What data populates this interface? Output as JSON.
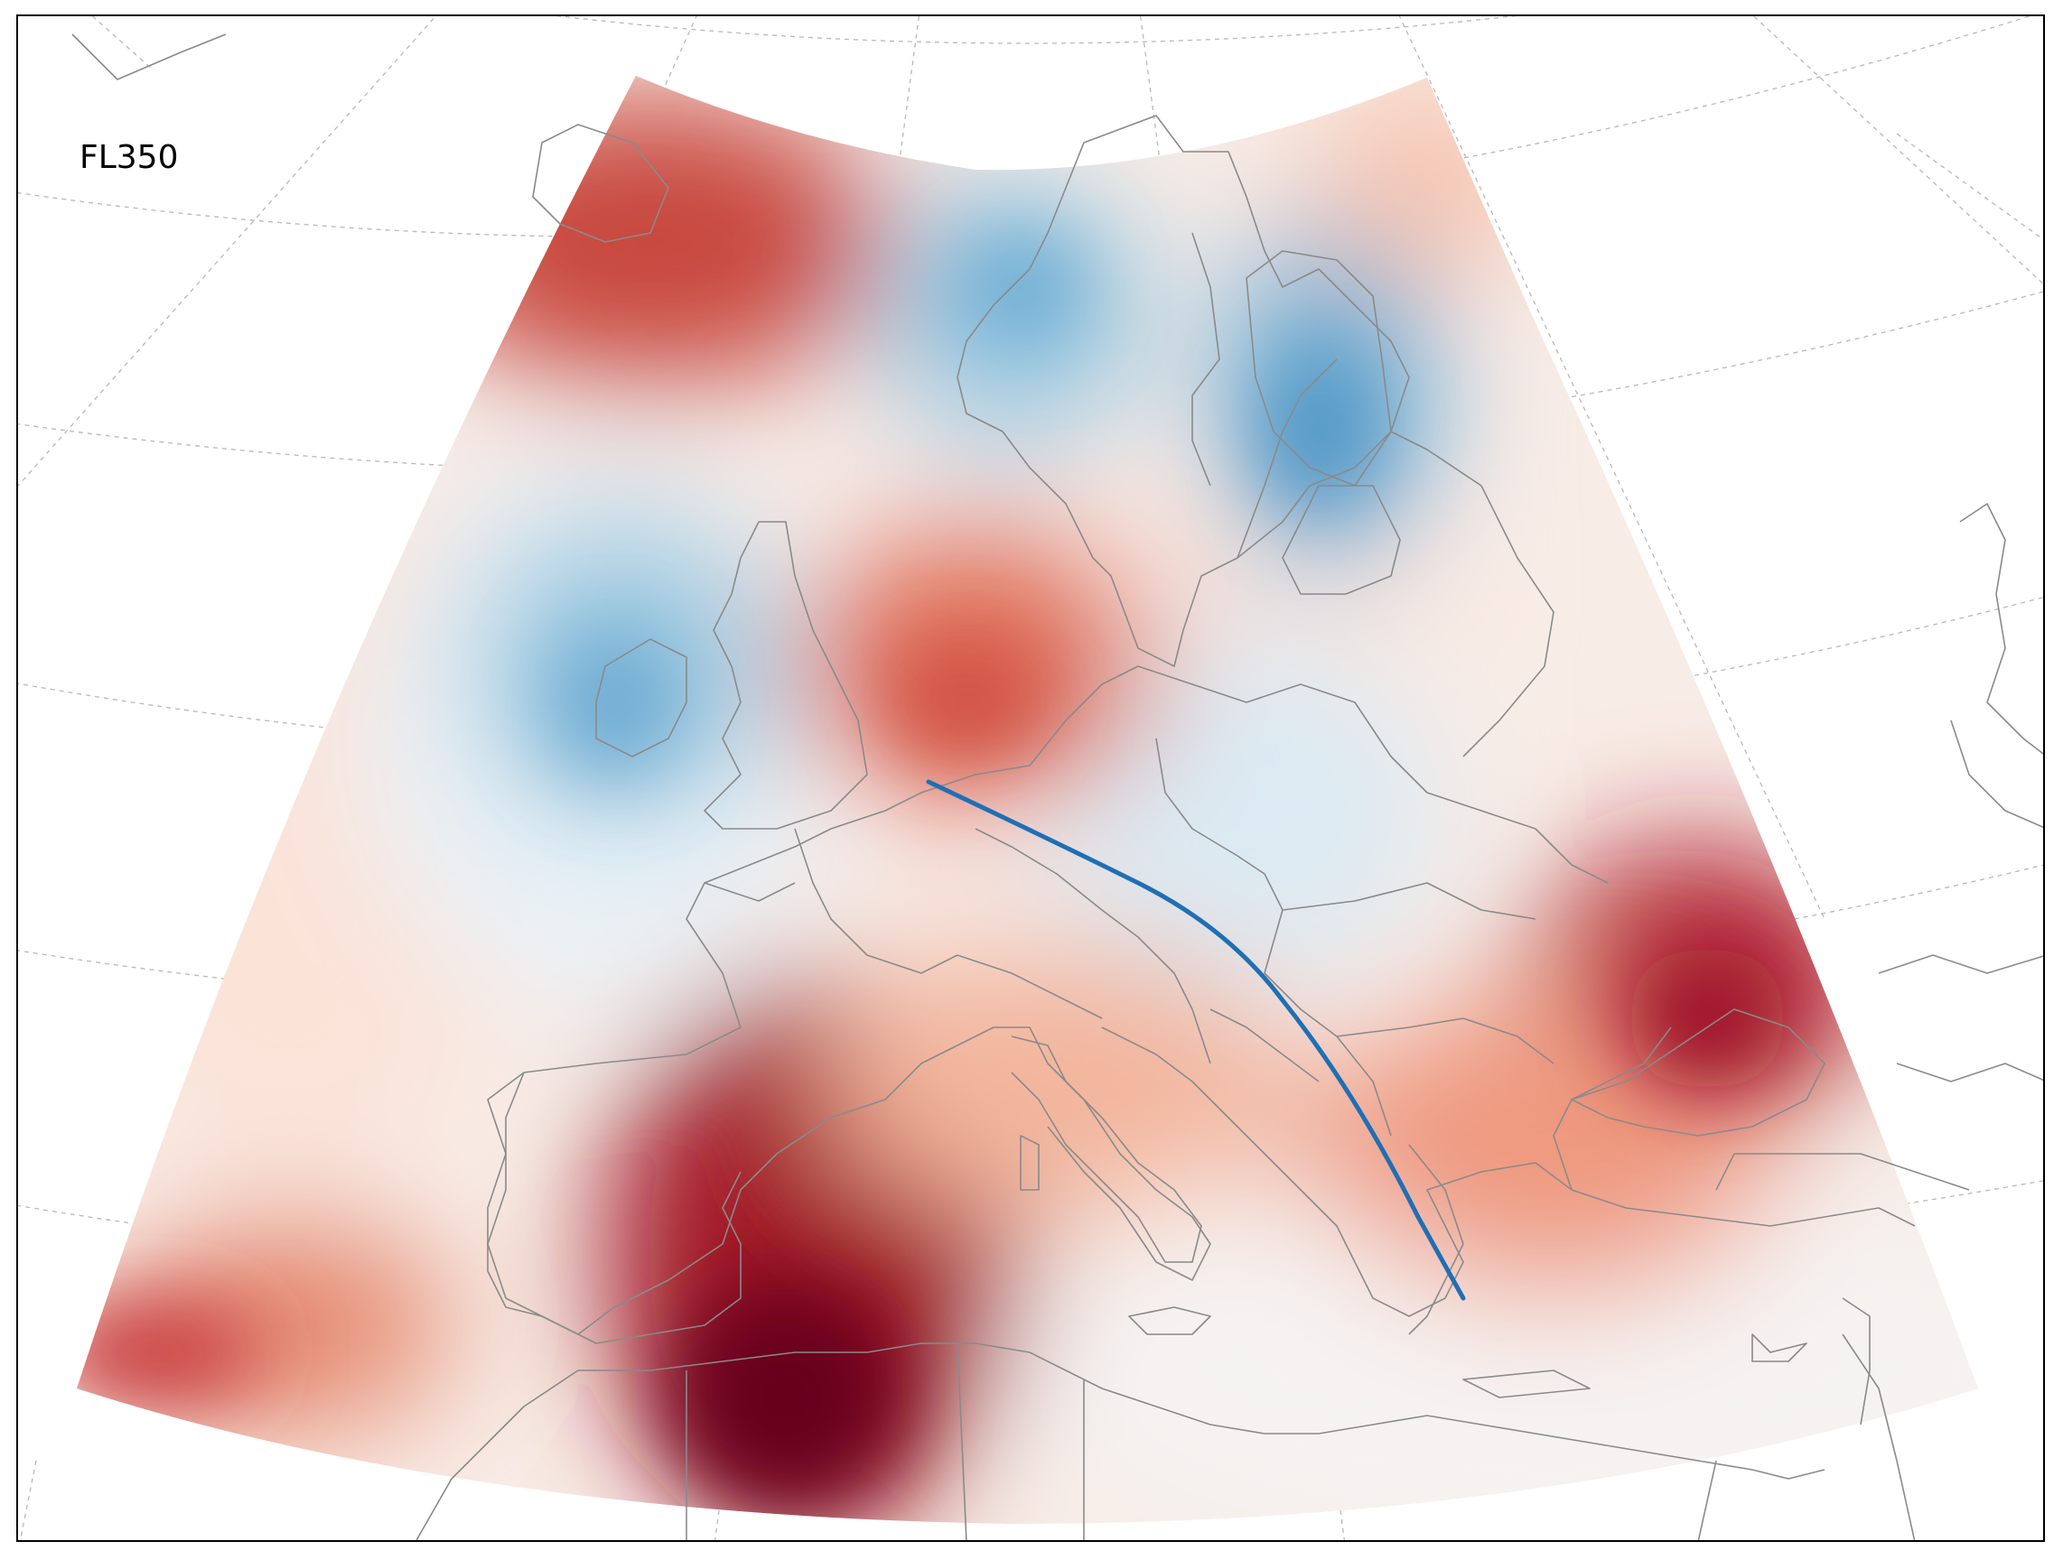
{
  "map": {
    "level_label": "FL350",
    "route_color": "#1f6fb4",
    "coastline_color": "#8a8a8a",
    "graticule_color": "#b8b8b8",
    "colormap": [
      "#67001f",
      "#b2182b",
      "#d6604d",
      "#f4a582",
      "#fddbc7",
      "#f7f7f7",
      "#d1e5f0",
      "#92c5de",
      "#4393c3"
    ],
    "icons": {
      "route": "flight-route-line",
      "wedge": "forecast-domain"
    }
  }
}
